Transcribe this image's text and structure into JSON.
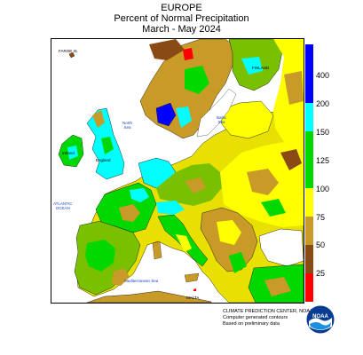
{
  "header": {
    "region": "EUROPE",
    "subtitle": "Percent of Normal Precipitation",
    "period": "March - May 2024"
  },
  "legend": {
    "colors": [
      "#ff0000",
      "#8a4a14",
      "#c89a28",
      "#ffff00",
      "#00d800",
      "#00ffff",
      "#0000ff"
    ],
    "ticks": [
      "25",
      "50",
      "75",
      "100",
      "125",
      "150",
      "200",
      "400"
    ]
  },
  "map_labels": {
    "faroe": "FAROE IS.",
    "finland": "FINLAND",
    "ireland": "Ireland",
    "england": "England",
    "malta": "MALTA"
  },
  "sea_labels": {
    "north_sea": [
      "North",
      "Sea"
    ],
    "baltic_sea": [
      "Baltic",
      "Sea"
    ],
    "atlantic": [
      "ATLANTIC",
      "OCEAN"
    ],
    "med": "Mediterranean Sea"
  },
  "credit": {
    "line1": "CLIMATE PREDICTION CENTER, NOAA",
    "line2": "Computer generated contours",
    "line3": "Based on preliminary data"
  },
  "logo": {
    "name": "noaa-logo",
    "text": "NOAA"
  }
}
